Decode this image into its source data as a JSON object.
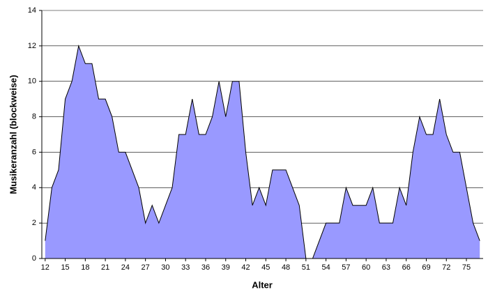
{
  "chart_data": {
    "type": "area",
    "x_label": "Alter",
    "y_label": "Musikeranzahl (blockweise)",
    "x": [
      12,
      13,
      14,
      15,
      16,
      17,
      18,
      19,
      20,
      21,
      22,
      23,
      24,
      25,
      26,
      27,
      28,
      29,
      30,
      31,
      32,
      33,
      34,
      35,
      36,
      37,
      38,
      39,
      40,
      41,
      42,
      43,
      44,
      45,
      46,
      47,
      48,
      49,
      50,
      51,
      52,
      53,
      54,
      55,
      56,
      57,
      58,
      59,
      60,
      61,
      62,
      63,
      64,
      65,
      66,
      67,
      68,
      69,
      70,
      71,
      72,
      73,
      74,
      75,
      76,
      77
    ],
    "values": [
      1,
      4,
      5,
      9,
      10,
      12,
      11,
      11,
      9,
      9,
      8,
      6,
      6,
      5,
      4,
      2,
      3,
      2,
      3,
      4,
      7,
      7,
      9,
      7,
      7,
      8,
      10,
      8,
      10,
      10,
      6,
      3,
      4,
      3,
      5,
      5,
      5,
      4,
      3,
      0,
      0,
      1,
      2,
      2,
      2,
      4,
      3,
      3,
      3,
      4,
      2,
      2,
      2,
      4,
      3,
      6,
      8,
      7,
      7,
      9,
      7,
      6,
      6,
      4,
      2,
      1
    ],
    "color": "#9999ff",
    "xlim": [
      11.5,
      77.5
    ],
    "xticks": [
      12,
      15,
      18,
      21,
      24,
      27,
      30,
      33,
      36,
      39,
      42,
      45,
      48,
      51,
      54,
      57,
      60,
      63,
      66,
      69,
      72,
      75
    ],
    "ylim": [
      0,
      14
    ],
    "yticks": [
      0,
      2,
      4,
      6,
      8,
      10,
      12,
      14
    ],
    "grid": true
  }
}
